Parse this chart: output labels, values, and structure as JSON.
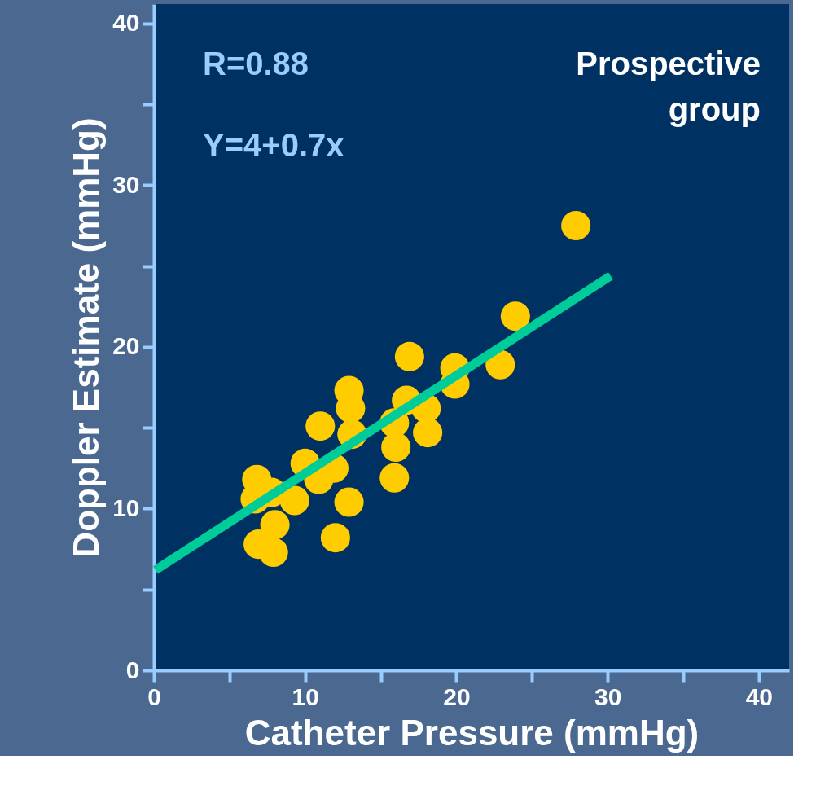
{
  "chart_data": {
    "type": "scatter",
    "xlabel": "Catheter Pressure  (mmHg)",
    "ylabel": "Doppler Estimate (mmHg)",
    "annotations": [
      "R=0.88",
      "Y=4+0.7x",
      "Prospective\ngroup"
    ],
    "series": [
      {
        "marker": "circle",
        "color": "#ffcc00",
        "x": [
          16.9,
          19.9,
          19.9,
          12.9,
          13.0,
          16.7,
          18.0,
          11.0,
          13.1,
          15.9,
          16.0,
          18.1,
          15.9,
          10.0,
          11.9,
          10.9,
          12.9,
          12.0,
          6.8,
          7.8,
          6.7,
          9.3,
          8.0,
          6.9,
          7.9,
          27.9,
          23.9,
          22.9
        ],
        "values": [
          19.4,
          18.7,
          17.7,
          17.3,
          16.2,
          16.7,
          16.2,
          15.1,
          14.6,
          15.3,
          13.8,
          14.7,
          11.9,
          12.8,
          12.5,
          11.8,
          10.4,
          8.2,
          11.8,
          11.0,
          10.6,
          10.5,
          9.0,
          7.8,
          7.3,
          27.5,
          21.9,
          18.9
        ]
      },
      {
        "type": "line",
        "marker": "none",
        "color": "#00cc99",
        "x": [
          0.1,
          30.2
        ],
        "values": [
          6.2,
          24.4
        ]
      }
    ],
    "grid": false,
    "xlim": [
      0,
      42
    ],
    "ylim": [
      0,
      41.2
    ],
    "xticks": [
      0,
      {
        "value": 5,
        "label": null
      },
      10,
      {
        "value": 15,
        "label": null
      },
      20,
      {
        "value": 25,
        "label": null
      },
      30,
      {
        "value": 35,
        "label": null
      },
      40
    ],
    "yticks": [
      0,
      {
        "value": 5,
        "label": null
      },
      10,
      {
        "value": 15,
        "label": null
      },
      20,
      {
        "value": 25,
        "label": null
      },
      30,
      {
        "value": 35,
        "label": null
      },
      40
    ]
  }
}
